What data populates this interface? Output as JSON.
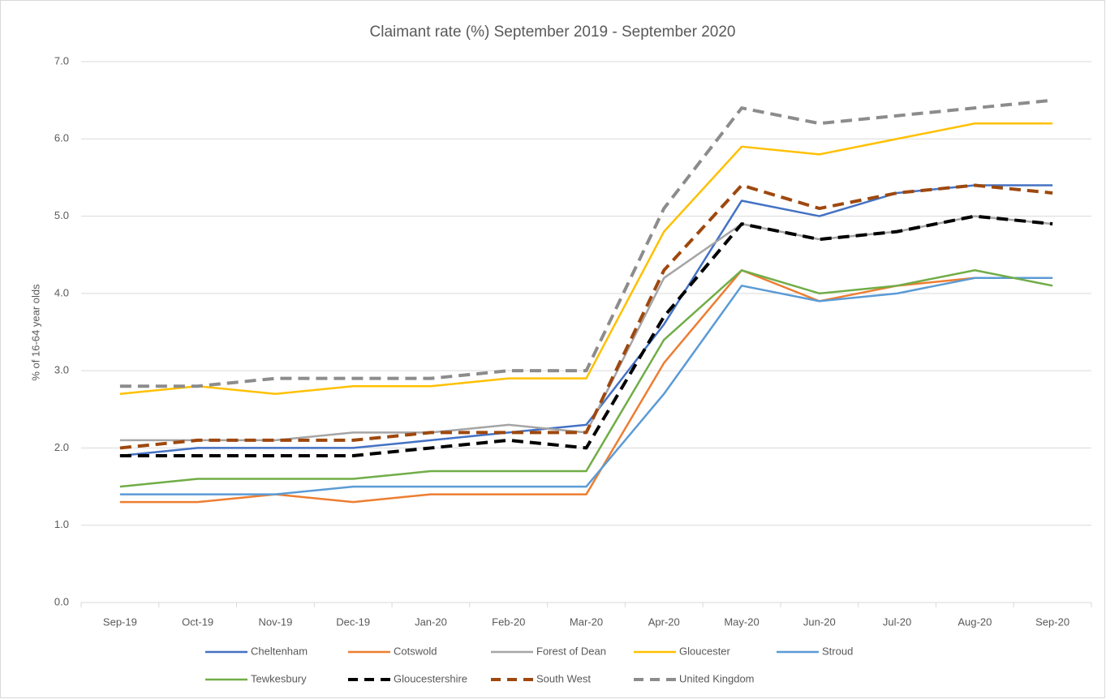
{
  "chart_data": {
    "type": "line",
    "title": "Claimant rate (%) September 2019 - September 2020",
    "y_label": "% of 16-64 year olds",
    "categories": [
      "Sep-19",
      "Oct-19",
      "Nov-19",
      "Dec-19",
      "Jan-20",
      "Feb-20",
      "Mar-20",
      "Apr-20",
      "May-20",
      "Jun-20",
      "Jul-20",
      "Aug-20",
      "Sep-20"
    ],
    "series": [
      {
        "name": "Cheltenham",
        "color": "#4472c4",
        "dashed": false,
        "values": [
          1.9,
          2.0,
          2.0,
          2.0,
          2.1,
          2.2,
          2.3,
          3.6,
          5.2,
          5.0,
          5.3,
          5.4,
          5.4
        ]
      },
      {
        "name": "Cotswold",
        "color": "#ed7d31",
        "dashed": false,
        "values": [
          1.3,
          1.3,
          1.4,
          1.3,
          1.4,
          1.4,
          1.4,
          3.1,
          4.3,
          3.9,
          4.1,
          4.2,
          4.2
        ]
      },
      {
        "name": "Forest of Dean",
        "color": "#a5a5a5",
        "dashed": false,
        "values": [
          2.1,
          2.1,
          2.1,
          2.2,
          2.2,
          2.3,
          2.2,
          4.2,
          4.9,
          4.7,
          4.8,
          5.0,
          4.9
        ]
      },
      {
        "name": "Gloucester",
        "color": "#ffc000",
        "dashed": false,
        "values": [
          2.7,
          2.8,
          2.7,
          2.8,
          2.8,
          2.9,
          2.9,
          4.8,
          5.9,
          5.8,
          6.0,
          6.2,
          6.2
        ]
      },
      {
        "name": "Stroud",
        "color": "#5b9bd5",
        "dashed": false,
        "values": [
          1.4,
          1.4,
          1.4,
          1.5,
          1.5,
          1.5,
          1.5,
          2.7,
          4.1,
          3.9,
          4.0,
          4.2,
          4.2
        ]
      },
      {
        "name": "Tewkesbury",
        "color": "#70ad47",
        "dashed": false,
        "values": [
          1.5,
          1.6,
          1.6,
          1.6,
          1.7,
          1.7,
          1.7,
          3.4,
          4.3,
          4.0,
          4.1,
          4.3,
          4.1
        ]
      },
      {
        "name": "Gloucestershire",
        "color": "#000000",
        "dashed": true,
        "values": [
          1.9,
          1.9,
          1.9,
          1.9,
          2.0,
          2.1,
          2.0,
          3.7,
          4.9,
          4.7,
          4.8,
          5.0,
          4.9
        ]
      },
      {
        "name": "South West",
        "color": "#9e480e",
        "dashed": true,
        "values": [
          2.0,
          2.1,
          2.1,
          2.1,
          2.2,
          2.2,
          2.2,
          4.3,
          5.4,
          5.1,
          5.3,
          5.4,
          5.3
        ]
      },
      {
        "name": "United Kingdom",
        "color": "#8c8c8c",
        "dashed": true,
        "values": [
          2.8,
          2.8,
          2.9,
          2.9,
          2.9,
          3.0,
          3.0,
          5.1,
          6.4,
          6.2,
          6.3,
          6.4,
          6.5
        ]
      }
    ],
    "ylim": [
      0,
      7
    ],
    "yticks": [
      {
        "value": 0,
        "label": "0.0"
      },
      {
        "value": 1,
        "label": "1.0"
      },
      {
        "value": 2,
        "label": "2.0"
      },
      {
        "value": 3,
        "label": "3.0"
      },
      {
        "value": 4,
        "label": "4.0"
      },
      {
        "value": 5,
        "label": "5.0"
      },
      {
        "value": 6,
        "label": "6.0"
      },
      {
        "value": 7,
        "label": "7.0"
      }
    ],
    "grid": true,
    "legend": "bottom"
  }
}
